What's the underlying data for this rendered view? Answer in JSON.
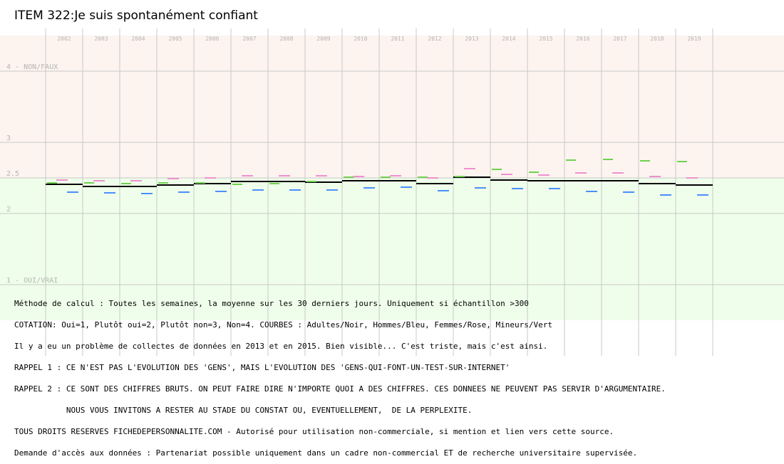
{
  "title": "ITEM 322:Je suis spontanément confiant",
  "chart_data": {
    "type": "line",
    "categories": [
      "2002",
      "2003",
      "2004",
      "2005",
      "2006",
      "2007",
      "2008",
      "2009",
      "2010",
      "2011",
      "2012",
      "2013",
      "2014",
      "2015",
      "2016",
      "2017",
      "2018",
      "2019"
    ],
    "ylim": [
      1,
      4
    ],
    "yticks": [
      {
        "value": 4,
        "label": "4 - NON/FAUX"
      },
      {
        "value": 3,
        "label": "3"
      },
      {
        "value": 2.5,
        "label": "2.5"
      },
      {
        "value": 2,
        "label": "2"
      },
      {
        "value": 1,
        "label": "1 - OUI/VRAI"
      }
    ],
    "grid": true,
    "bands": [
      {
        "from": 2.5,
        "to": 4.5,
        "color": "#fdf4ef"
      },
      {
        "from": 0.5,
        "to": 2.5,
        "color": "#effeea"
      }
    ],
    "series": [
      {
        "name": "Adultes",
        "color": "#000000",
        "values": [
          2.41,
          2.38,
          2.38,
          2.4,
          2.42,
          2.45,
          2.45,
          2.44,
          2.46,
          2.46,
          2.42,
          2.51,
          2.47,
          2.46,
          2.46,
          2.46,
          2.42,
          2.4
        ]
      },
      {
        "name": "Hommes",
        "color": "#4a90ff",
        "values": [
          2.3,
          2.29,
          2.28,
          2.3,
          2.31,
          2.33,
          2.33,
          2.33,
          2.36,
          2.37,
          2.32,
          2.36,
          2.35,
          2.35,
          2.31,
          2.3,
          2.26,
          2.26
        ]
      },
      {
        "name": "Femmes",
        "color": "#f090d0",
        "values": [
          2.47,
          2.46,
          2.46,
          2.49,
          2.5,
          2.53,
          2.53,
          2.53,
          2.52,
          2.53,
          2.5,
          2.63,
          2.55,
          2.54,
          2.57,
          2.57,
          2.52,
          2.5
        ]
      },
      {
        "name": "Mineurs",
        "color": "#70d050",
        "values": [
          2.43,
          2.43,
          2.42,
          2.43,
          2.43,
          2.41,
          2.42,
          2.45,
          2.51,
          2.51,
          2.51,
          2.52,
          2.62,
          2.58,
          2.75,
          2.76,
          2.74,
          2.73
        ]
      }
    ]
  },
  "notes": [
    "Méthode de calcul : Toutes les semaines, la moyenne sur les 30 derniers jours. Uniquement si échantillon >300",
    "COTATION: Oui=1, Plutôt oui=2, Plutôt non=3, Non=4. COURBES : Adultes/Noir, Hommes/Bleu, Femmes/Rose, Mineurs/Vert",
    "Il y a eu un problème de collectes de données en 2013 et en 2015. Bien visible... C'est triste, mais c'est ainsi.",
    "RAPPEL 1 : CE N'EST PAS L'EVOLUTION DES 'GENS', MAIS L'EVOLUTION DES 'GENS-QUI-FONT-UN-TEST-SUR-INTERNET'",
    "RAPPEL 2 : CE SONT DES CHIFFRES BRUTS. ON PEUT FAIRE DIRE N'IMPORTE QUOI A DES CHIFFRES. CES DONNEES NE PEUVENT PAS SERVIR D'ARGUMENTAIRE.",
    "           NOUS VOUS INVITONS A RESTER AU STADE DU CONSTAT OU, EVENTUELLEMENT,  DE LA PERPLEXITE.",
    "TOUS DROITS RESERVES FICHEDEPERSONNALITE.COM - Autorisé pour utilisation non-commerciale, si mention et lien vers cette source.",
    "Demande d'accès aux données : Partenariat possible uniquement dans un cadre non-commercial ET de recherche universitaire supervisée."
  ]
}
